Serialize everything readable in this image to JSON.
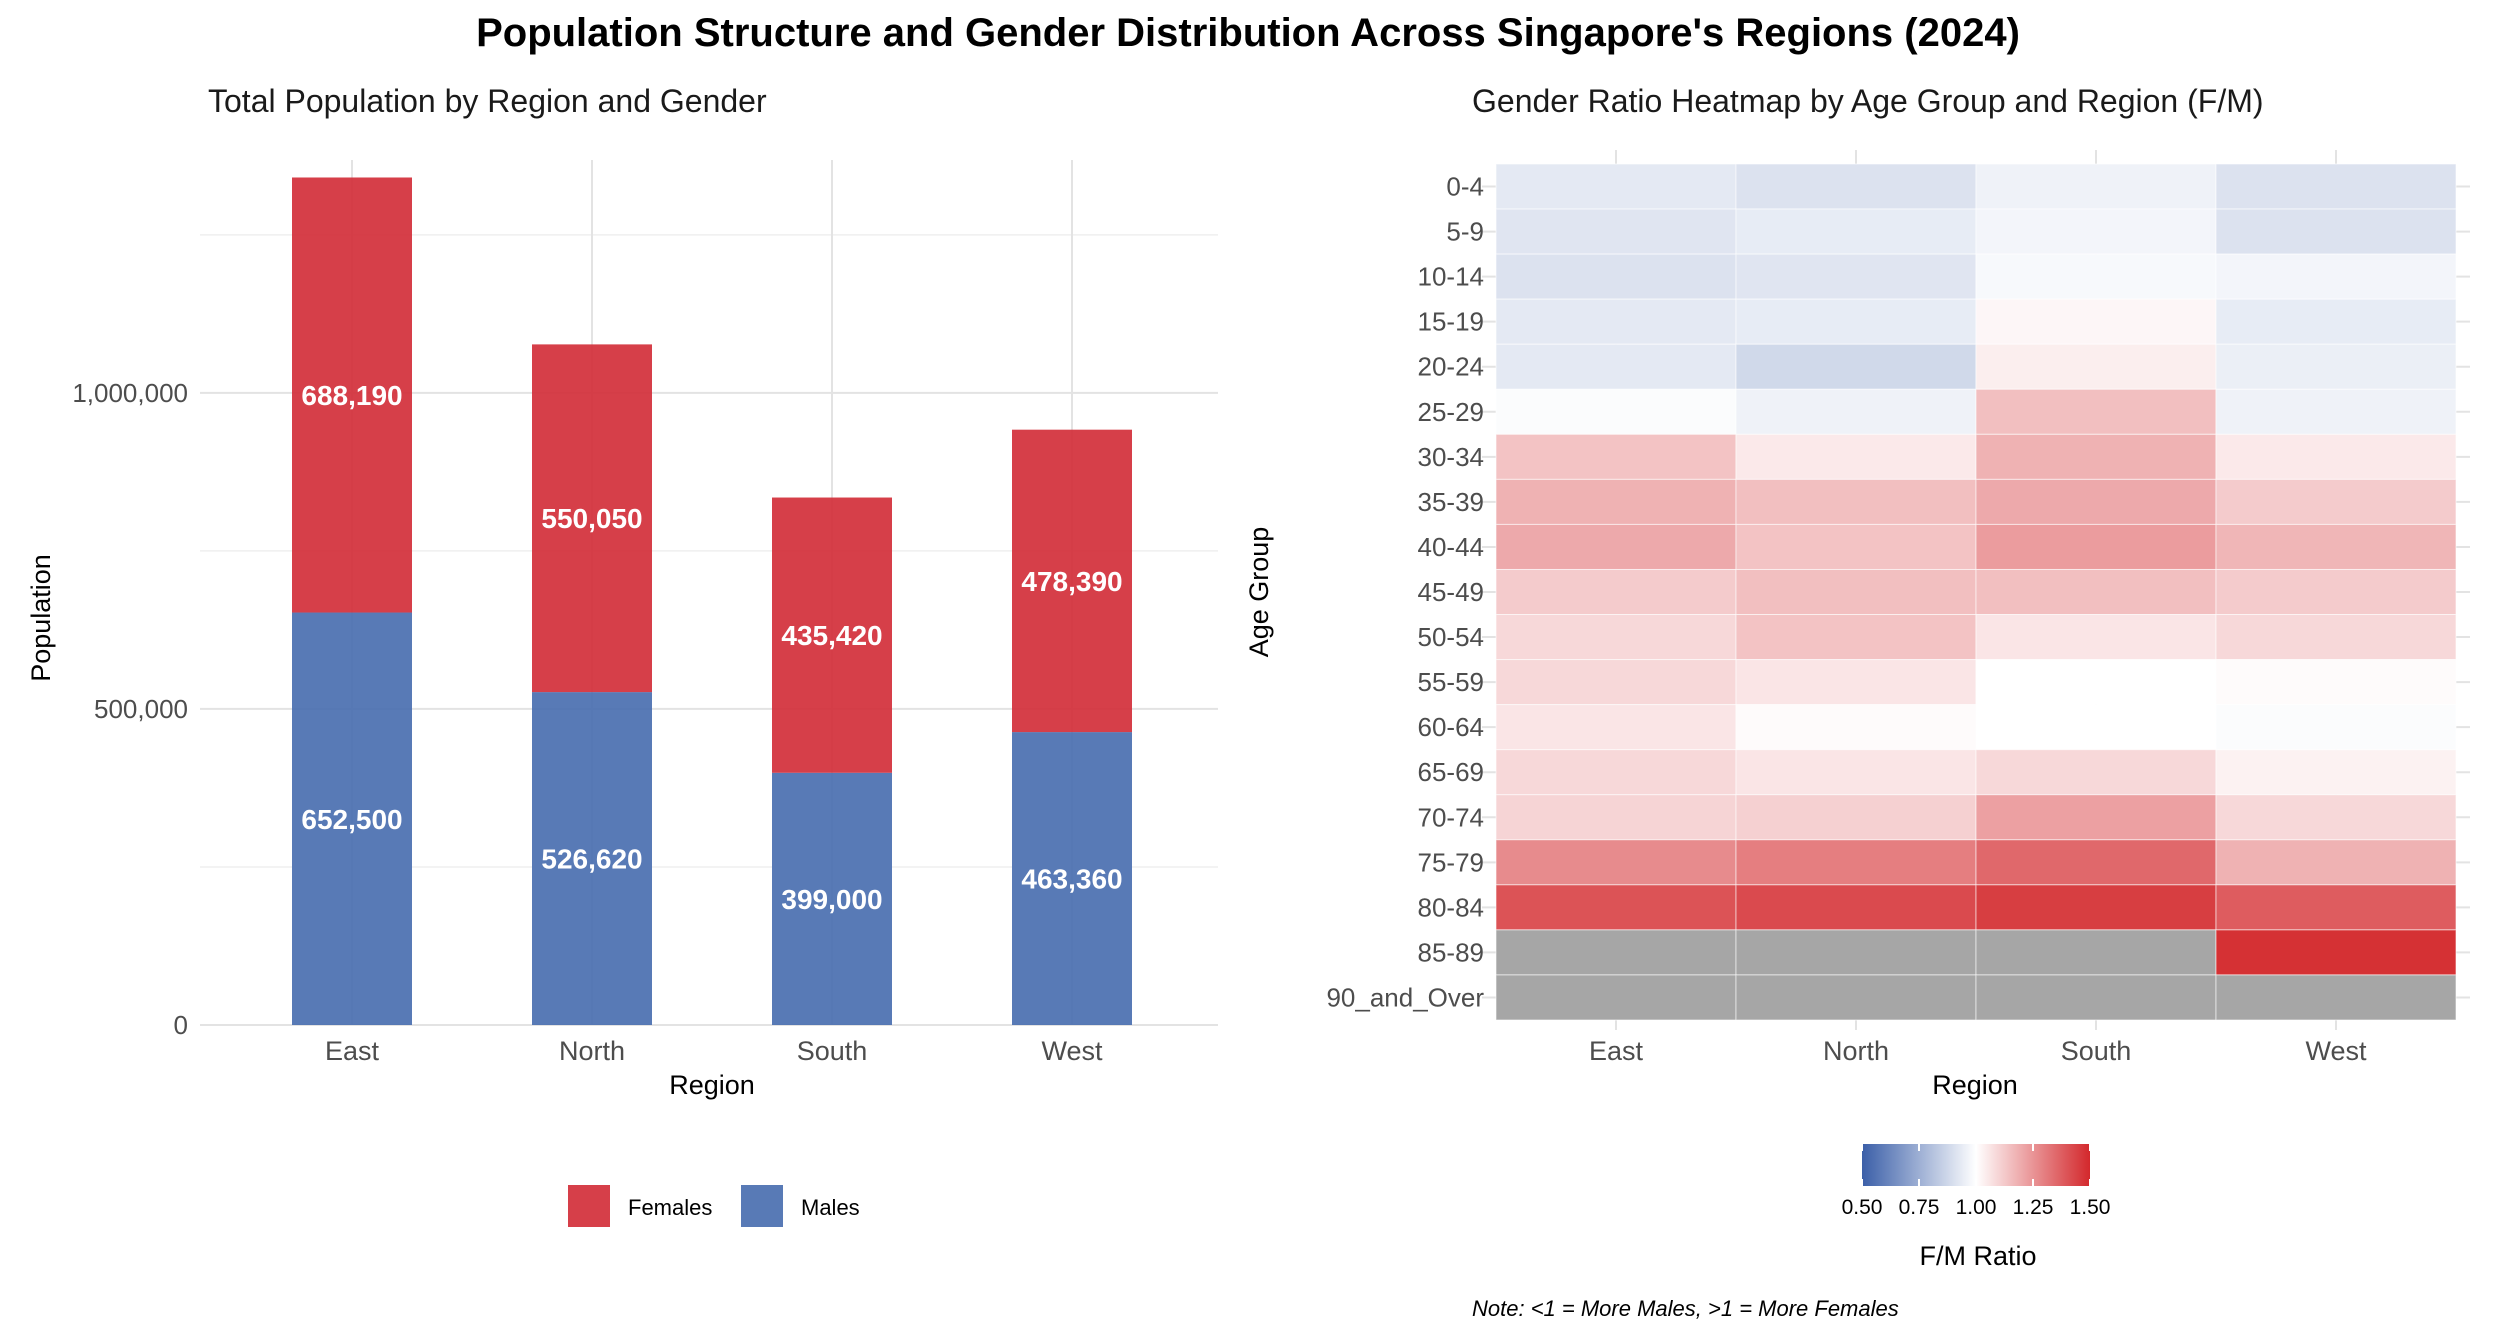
{
  "title": "Population Structure and Gender Distribution Across Singapore's Regions (2024)",
  "chart_data": [
    {
      "type": "bar",
      "stacked": true,
      "title": "Total Population by Region and Gender",
      "xlabel": "Region",
      "ylabel": "Population",
      "categories": [
        "East",
        "North",
        "South",
        "West"
      ],
      "series": [
        {
          "name": "Males",
          "color": "#4a6fb0",
          "values": [
            652500,
            526620,
            399000,
            463360
          ],
          "labels": [
            "652,500",
            "526,620",
            "399,000",
            "463,360"
          ]
        },
        {
          "name": "Females",
          "color": "#d32f3a",
          "values": [
            688190,
            550050,
            435420,
            478390
          ],
          "labels": [
            "688,190",
            "550,050",
            "435,420",
            "478,390"
          ]
        }
      ],
      "ylim": [
        0,
        1400000
      ],
      "yticks": [
        0,
        500000,
        1000000
      ],
      "ytick_labels": [
        "0",
        "500,000",
        "1,000,000"
      ],
      "grid": true,
      "legend": {
        "position": "bottom",
        "entries": [
          "Females",
          "Males"
        ]
      }
    },
    {
      "type": "heatmap",
      "title": "Gender Ratio Heatmap by Age Group and Region (F/M)",
      "xlabel": "Region",
      "ylabel": "Age Group",
      "x": [
        "East",
        "North",
        "South",
        "West"
      ],
      "y": [
        "0-4",
        "5-9",
        "10-14",
        "15-19",
        "20-24",
        "25-29",
        "30-34",
        "35-39",
        "40-44",
        "45-49",
        "50-54",
        "55-59",
        "60-64",
        "65-69",
        "70-74",
        "75-79",
        "80-84",
        "85-89",
        "90_and_Over"
      ],
      "values": [
        [
          0.93,
          0.91,
          0.96,
          0.91
        ],
        [
          0.92,
          0.94,
          0.97,
          0.91
        ],
        [
          0.91,
          0.92,
          0.98,
          0.97
        ],
        [
          0.93,
          0.94,
          1.02,
          0.94
        ],
        [
          0.93,
          0.88,
          1.04,
          0.95
        ],
        [
          0.99,
          0.96,
          1.15,
          0.96
        ],
        [
          1.14,
          1.05,
          1.18,
          1.05
        ],
        [
          1.18,
          1.15,
          1.2,
          1.12
        ],
        [
          1.2,
          1.14,
          1.23,
          1.17
        ],
        [
          1.12,
          1.15,
          1.15,
          1.12
        ],
        [
          1.09,
          1.14,
          1.06,
          1.09
        ],
        [
          1.09,
          1.06,
          1.0,
          1.01
        ],
        [
          1.06,
          1.01,
          1.0,
          0.99
        ],
        [
          1.09,
          1.06,
          1.09,
          1.03
        ],
        [
          1.1,
          1.11,
          1.22,
          1.09
        ],
        [
          1.27,
          1.3,
          1.35,
          1.18
        ],
        [
          1.4,
          1.42,
          1.45,
          1.38
        ],
        [
          null,
          null,
          null,
          1.48
        ],
        [
          null,
          null,
          null,
          null
        ]
      ],
      "colorbar": {
        "label": "F/M Ratio",
        "ticks": [
          0.5,
          0.75,
          1.0,
          1.25,
          1.5
        ],
        "tick_labels": [
          "0.50",
          "0.75",
          "1.00",
          "1.25",
          "1.50"
        ],
        "range": [
          0.5,
          1.5
        ],
        "low_color": "#3b5fa8",
        "mid_color": "#ffffff",
        "high_color": "#d3282c",
        "na_color": "#a6a6a6"
      },
      "note": "Note: <1 = More Males, >1 = More Females"
    }
  ]
}
